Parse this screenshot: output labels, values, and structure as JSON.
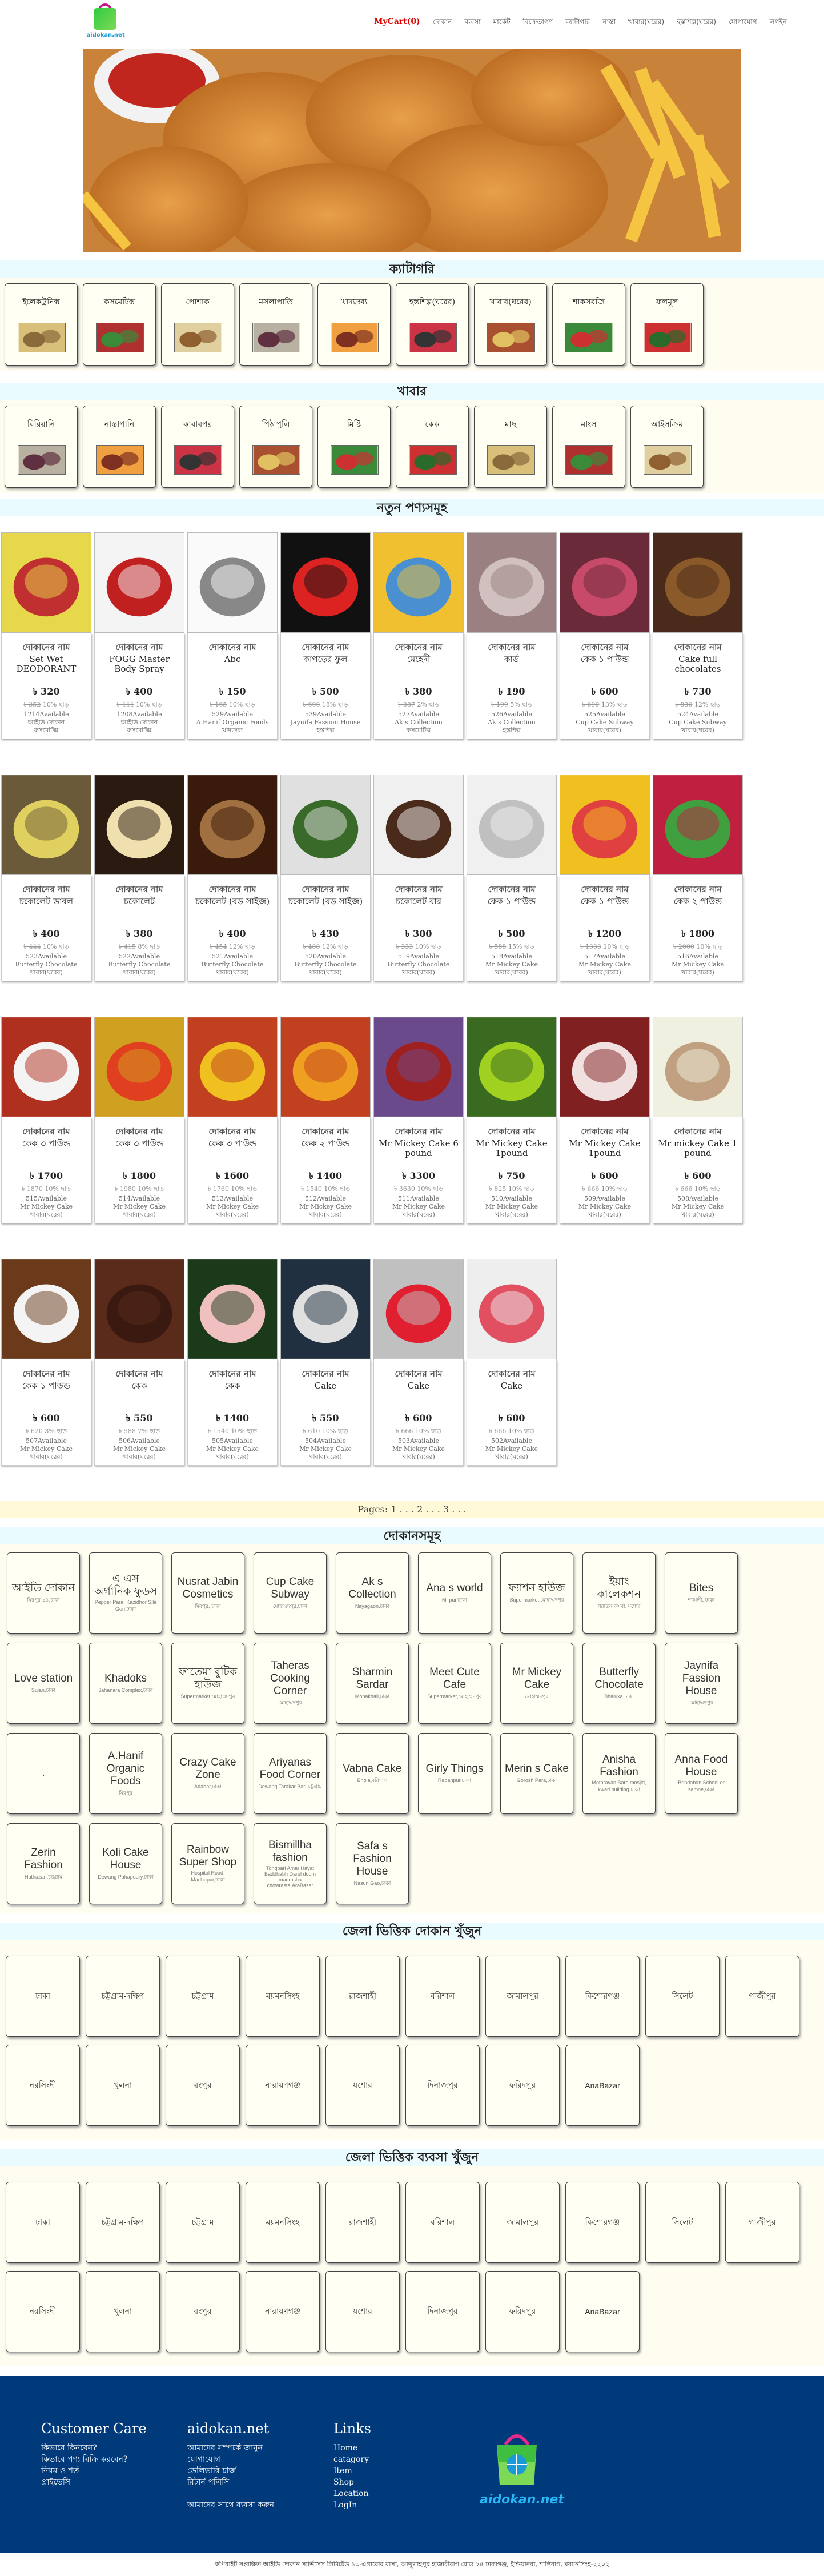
{
  "header": {
    "logo_text": "aidokan.net",
    "cart": "MyCart(0)",
    "nav": [
      "দোকান",
      "ব্যবসা",
      "মার্কেট",
      "বিক্রেতাগণ",
      "ক্যাটাগরি",
      "নাস্তা",
      "খাবার(ঘরের)",
      "হস্তশিল্প(ঘরের)",
      "যোগাযোগ",
      "লগইন"
    ]
  },
  "sections": {
    "categories_title": "ক্যাটাগরি",
    "food_title": "খাবার",
    "products_title": "নতুন পণ্যসমূহ",
    "shops_title": "দোকানসমূহ",
    "district1_title": "জেলা ভিত্তিক দোকান খুঁজুন",
    "district2_title": "জেলা ভিত্তিক ব্যবসা খুঁজুন"
  },
  "categories": [
    "ইলেকট্রনিক্স",
    "কসমেটিক্স",
    "পোশাক",
    "মসলাপাতি",
    "খাদ্যদ্রব্য",
    "হস্তশিল্প(ঘরের)",
    "খাবার(ঘরের)",
    "শাকসবজি",
    "ফলমূল"
  ],
  "foods": [
    "বিরিয়ানি",
    "নাস্তাপানি",
    "কাবাবপর",
    "পিঠাপুলি",
    "মিষ্টি",
    "কেক",
    "মাছ",
    "মাংস",
    "আইসক্রিম"
  ],
  "products": [
    {
      "shop": "দোকানের নাম",
      "name": "Set Wet DEODORANT",
      "price": "৳ 320",
      "old": "৳ 352",
      "disc": "10% ছাড়",
      "avail": "1214Available",
      "by": "আইডি দোকান",
      "cat": "কসমেটিক্স",
      "img": "deo"
    },
    {
      "shop": "দোকানের নাম",
      "name": "FOGG Master Body Spray",
      "price": "৳ 400",
      "old": "৳ 444",
      "disc": "10% ছাড়",
      "avail": "1208Available",
      "by": "আইডি দোকান",
      "cat": "কসমেটিক্স",
      "img": "spray"
    },
    {
      "shop": "দোকানের নাম",
      "name": "Abc",
      "price": "৳ 150",
      "old": "৳ 165",
      "disc": "10% ছাড়",
      "avail": "529Available",
      "by": "A.Hanif Organic Foods",
      "cat": "খাদ্যদ্রব্য",
      "img": "paper"
    },
    {
      "shop": "দোকানের নাম",
      "name": "কাপড়ের ফুল",
      "price": "৳ 500",
      "old": "৳ 608",
      "disc": "18% ছাড়",
      "avail": "539Available",
      "by": "Jaynifa Fassion House",
      "cat": "হস্তশিল্প",
      "img": "flower"
    },
    {
      "shop": "দোকানের নাম",
      "name": "মেহেদী",
      "price": "৳ 380",
      "old": "৳ 387",
      "disc": "2% ছাড়",
      "avail": "527Available",
      "by": "Ak s Collection",
      "cat": "কসমেটিক্স",
      "img": "mehedi"
    },
    {
      "shop": "দোকানের নাম",
      "name": "কার্ড",
      "price": "৳ 190",
      "old": "৳ 199",
      "disc": "5% ছাড়",
      "avail": "526Available",
      "by": "Ak s Collection",
      "cat": "হস্তশিল্প",
      "img": "card"
    },
    {
      "shop": "দোকানের নাম",
      "name": "কেক ১ পাউন্ড",
      "price": "৳ 600",
      "old": "৳ 690",
      "disc": "13% ছাড়",
      "avail": "525Available",
      "by": "Cup Cake Subway",
      "cat": "খাবার(ঘরের)",
      "img": "cake1"
    },
    {
      "shop": "দোকানের নাম",
      "name": "Cake full chocolates",
      "price": "৳ 730",
      "old": "৳ 830",
      "disc": "12% ছাড়",
      "avail": "524Available",
      "by": "Cup Cake Subway",
      "cat": "খাবার(ঘরের)",
      "img": "cake2"
    },
    {
      "shop": "দোকানের নাম",
      "name": "চকোলেট ডাবল",
      "price": "৳ 400",
      "old": "৳ 444",
      "disc": "10% ছাড়",
      "avail": "523Available",
      "by": "Butterfly Chocolate",
      "cat": "খাবার(ঘরের)",
      "img": "choc1"
    },
    {
      "shop": "দোকানের নাম",
      "name": "চকোলেট",
      "price": "৳ 380",
      "old": "৳ 415",
      "disc": "8% ছাড়",
      "avail": "522Available",
      "by": "Butterfly Chocolate",
      "cat": "খাবার(ঘরের)",
      "img": "choc2"
    },
    {
      "shop": "দোকানের নাম",
      "name": "চকোলেট (বড় সাইজ)",
      "price": "৳ 400",
      "old": "৳ 454",
      "disc": "12% ছাড়",
      "avail": "521Available",
      "by": "Butterfly Chocolate",
      "cat": "খাবার(ঘরের)",
      "img": "choc3"
    },
    {
      "shop": "দোকানের নাম",
      "name": "চকোলেট (বড় সাইজ)",
      "price": "৳ 430",
      "old": "৳ 488",
      "disc": "12% ছাড়",
      "avail": "520Available",
      "by": "Butterfly Chocolate",
      "cat": "খাবার(ঘরের)",
      "img": "choc4"
    },
    {
      "shop": "দোকানের নাম",
      "name": "চকোলেট বার",
      "price": "৳ 300",
      "old": "৳ 333",
      "disc": "10% ছাড়",
      "avail": "519Available",
      "by": "Butterfly Chocolate",
      "cat": "খাবার(ঘরের)",
      "img": "choc5"
    },
    {
      "shop": "দোকানের নাম",
      "name": "কেক ১ পাউন্ড",
      "price": "৳ 500",
      "old": "৳ 588",
      "disc": "15% ছাড়",
      "avail": "518Available",
      "by": "Mr Mickey Cake",
      "cat": "খাবার(ঘরের)",
      "img": "cake3"
    },
    {
      "shop": "দোকানের নাম",
      "name": "কেক ১ পাউন্ড",
      "price": "৳ 1200",
      "old": "৳ 1333",
      "disc": "10% ছাড়",
      "avail": "517Available",
      "by": "Mr Mickey Cake",
      "cat": "খাবার(ঘরের)",
      "img": "cake4"
    },
    {
      "shop": "দোকানের নাম",
      "name": "কেক ২ পাউন্ড",
      "price": "৳ 1800",
      "old": "৳ 2000",
      "disc": "10% ছাড়",
      "avail": "516Available",
      "by": "Mr Mickey Cake",
      "cat": "খাবার(ঘরের)",
      "img": "cake5"
    },
    {
      "shop": "দোকানের নাম",
      "name": "কেক ৩ পাউন্ড",
      "price": "৳ 1700",
      "old": "৳ 1870",
      "disc": "10% ছাড়",
      "avail": "515Available",
      "by": "Mr Mickey Cake",
      "cat": "খাবার(ঘরের)",
      "img": "cake6"
    },
    {
      "shop": "দোকানের নাম",
      "name": "কেক ৩ পাউন্ড",
      "price": "৳ 1800",
      "old": "৳ 1980",
      "disc": "10% ছাড়",
      "avail": "514Available",
      "by": "Mr Mickey Cake",
      "cat": "খাবার(ঘরের)",
      "img": "cake7"
    },
    {
      "shop": "দোকানের নাম",
      "name": "কেক ৩ পাউন্ড",
      "price": "৳ 1600",
      "old": "৳ 1760",
      "disc": "10% ছাড়",
      "avail": "513Available",
      "by": "Mr Mickey Cake",
      "cat": "খাবার(ঘরের)",
      "img": "cake8"
    },
    {
      "shop": "দোকানের নাম",
      "name": "কেক ২ পাউন্ড",
      "price": "৳ 1400",
      "old": "৳ 1540",
      "disc": "10% ছাড়",
      "avail": "512Available",
      "by": "Mr Mickey Cake",
      "cat": "খাবার(ঘরের)",
      "img": "cake9"
    },
    {
      "shop": "দোকানের নাম",
      "name": "Mr Mickey Cake 6 pound",
      "price": "৳ 3300",
      "old": "৳ 3630",
      "disc": "10% ছাড়",
      "avail": "511Available",
      "by": "Mr Mickey Cake",
      "cat": "খাবার(ঘরের)",
      "img": "cake10"
    },
    {
      "shop": "দোকানের নাম",
      "name": "Mr Mickey Cake 1pound",
      "price": "৳ 750",
      "old": "৳ 825",
      "disc": "10% ছাড়",
      "avail": "510Available",
      "by": "Mr Mickey Cake",
      "cat": "খাবার(ঘরের)",
      "img": "cake11"
    },
    {
      "shop": "দোকানের নাম",
      "name": "Mr Mickey Cake 1pound",
      "price": "৳ 600",
      "old": "৳ 666",
      "disc": "10% ছাড়",
      "avail": "509Available",
      "by": "Mr Mickey Cake",
      "cat": "খাবার(ঘরের)",
      "img": "cake12"
    },
    {
      "shop": "দোকানের নাম",
      "name": "Mr mickey Cake 1 pound",
      "price": "৳ 600",
      "old": "৳ 666",
      "disc": "10% ছাড়",
      "avail": "508Available",
      "by": "Mr Mickey Cake",
      "cat": "খাবার(ঘরের)",
      "img": "cake13"
    },
    {
      "shop": "দোকানের নাম",
      "name": "কেক ১ পাউন্ড",
      "price": "৳ 600",
      "old": "৳ 620",
      "disc": "3% ছাড়",
      "avail": "507Available",
      "by": "Mr Mickey Cake",
      "cat": "খাবার(ঘরের)",
      "img": "cake14"
    },
    {
      "shop": "দোকানের নাম",
      "name": "কেক",
      "price": "৳ 550",
      "old": "৳ 588",
      "disc": "7% ছাড়",
      "avail": "506Available",
      "by": "Mr Mickey Cake",
      "cat": "খাবার(ঘরের)",
      "img": "cake15"
    },
    {
      "shop": "দোকানের নাম",
      "name": "কেক",
      "price": "৳ 1400",
      "old": "৳ 1540",
      "disc": "10% ছাড়",
      "avail": "505Available",
      "by": "Mr Mickey Cake",
      "cat": "খাবার(ঘরের)",
      "img": "cake16"
    },
    {
      "shop": "দোকানের নাম",
      "name": "Cake",
      "price": "৳ 550",
      "old": "৳ 610",
      "disc": "10% ছাড়",
      "avail": "504Available",
      "by": "Mr Mickey Cake",
      "cat": "খাবার(ঘরের)",
      "img": "cake17"
    },
    {
      "shop": "দোকানের নাম",
      "name": "Cake",
      "price": "৳ 600",
      "old": "৳ 666",
      "disc": "10% ছাড়",
      "avail": "503Available",
      "by": "Mr Mickey Cake",
      "cat": "খাবার(ঘরের)",
      "img": "cake18"
    },
    {
      "shop": "দোকানের নাম",
      "name": "Cake",
      "price": "৳ 600",
      "old": "৳ 666",
      "disc": "10% ছাড়",
      "avail": "502Available",
      "by": "Mr Mickey Cake",
      "cat": "খাবার(ঘরের)",
      "img": "cake19"
    }
  ],
  "pagination": "Pages: 1 . . . 2 . . . 3 . . .",
  "shops": [
    {
      "name": "আইডি দোকান",
      "addr": "মিরপুর-১১,ঢাকা"
    },
    {
      "name": "এ এস অর্গানিক ফুডস",
      "addr": "Pepper Para, Kazidhor Sila Gon,ঢাকা"
    },
    {
      "name": "Nusrat Jabin Cosmetics",
      "addr": "মিরপুর, ঢাকা"
    },
    {
      "name": "Cup Cake Subway",
      "addr": "মোহাম্মদপুর,ঢাকা"
    },
    {
      "name": "Ak s Collection",
      "addr": "Nayagaon,ঢাকা"
    },
    {
      "name": "Ana s world",
      "addr": "Mirpur,ঢাকা"
    },
    {
      "name": "ফ্যাশন হাউজ",
      "addr": "Supermarket,মোহাম্মদপুর"
    },
    {
      "name": "ইয়াং কালেকশন",
      "addr": "পুরাতন কসবা, যশোর"
    },
    {
      "name": "Bites",
      "addr": "শ্যামলী, ঢাকা"
    },
    {
      "name": "Love station",
      "addr": "Sujan,ঢাকা"
    },
    {
      "name": "Khadoks",
      "addr": "Jahanara Complex,ঢাকা"
    },
    {
      "name": "ফাতেমা বুটিক হাউজ",
      "addr": "Supermarket,মোহাম্মদপুর"
    },
    {
      "name": "Taheras Cooking Corner",
      "addr": "মোহাম্মদপুর"
    },
    {
      "name": "Sharmin Sardar",
      "addr": "Mohakhali,ঢাকা"
    },
    {
      "name": "Meet Cute Cafe",
      "addr": "Supermarket,মোহাম্মদপুর"
    },
    {
      "name": "Mr Mickey Cake",
      "addr": "মোহাম্মদপুর"
    },
    {
      "name": "Butterfly Chocolate",
      "addr": "Bhaluka,ঢাকা"
    },
    {
      "name": "Jaynifa Fassion House",
      "addr": "মোহাম্মদপুর"
    },
    {
      "name": ".",
      "addr": ""
    },
    {
      "name": "A.Hanif Organic Foods",
      "addr": "মিরপুর"
    },
    {
      "name": "Crazy Cake Zone",
      "addr": "Adabar,ঢাকা"
    },
    {
      "name": "Ariyanas Food Corner",
      "addr": "Dewang Tarakar Bari,চট্টগ্রাম"
    },
    {
      "name": "Vabna Cake",
      "addr": "Bhola,বরিশাল"
    },
    {
      "name": "Girly Things",
      "addr": "Rabanpur,ঢাকা"
    },
    {
      "name": "Merin s Cake",
      "addr": "Gorosh Para,ঢাকা"
    },
    {
      "name": "Anisha Fashion",
      "addr": "Motaravan Baro mosjid, kwari building,ঢাকা"
    },
    {
      "name": "Anna Food House",
      "addr": "Brindaban School er samne,ঢাকা"
    },
    {
      "name": "Zerin Fashion",
      "addr": "Hathazari,চট্টগ্রাম"
    },
    {
      "name": "Koli Cake House",
      "addr": "Dewang Pahapudry,ঢাকা"
    },
    {
      "name": "Rainbow Super Shop",
      "addr": "Hospital Road, Madhupur,ঢাকা"
    },
    {
      "name": "Bismillha fashion",
      "addr": "Tongbari Amar Hayat Baddhabh Darul doom madrasha chowrasta,AraBazar"
    },
    {
      "name": "Safa s Fashion House",
      "addr": "Nasun Gao,ঢাকা"
    }
  ],
  "districts": [
    "ঢাকা",
    "চট্টগ্রাম-দক্ষিণ",
    "চট্টগ্রাম",
    "ময়মনসিংহ",
    "রাজশাহী",
    "বরিশাল",
    "জামালপুর",
    "কিশোরগঞ্জ",
    "সিলেট",
    "গাজীপুর",
    "নরসিংদী",
    "খুলনা",
    "রংপুর",
    "নারায়ণগঞ্জ",
    "যশোর",
    "দিনাজপুর",
    "ফরিদপুর",
    "AriaBazar"
  ],
  "footer": {
    "col1_title": "Customer Care",
    "col1": [
      "কিভাবে কিনবেন?",
      "কিভাবে পণ্য বিক্রি করবেন?",
      "নিয়ম ও শর্ত",
      "প্রাইভেসি"
    ],
    "col2_title": "aidokan.net",
    "col2": [
      "আমাদের সম্পর্কে জানুন",
      "যোগাযোগ",
      "ডেলিভারি চার্জ",
      "রিটার্ন পলিসি",
      "",
      "আমাদের সাথে ব্যবসা করুন"
    ],
    "col3_title": "Links",
    "col3": [
      "Home",
      "catagory",
      "Item",
      "Shop",
      "Location",
      "LogIn"
    ],
    "logo": "aidokan.net",
    "copyright": "কপিরাইট সংরক্ষিত আইডি দোকান সার্ভিসেস লিমিটেড ১৩-এগারোর বাসা, আব্দুল্লাহপুর হাজারীবাগ রোড ২৫ ঢাকাগঞ্জ, ইন্ডিয়ানরা, শান্তিবাগ, ময়মনসিংহ-২২০২"
  }
}
